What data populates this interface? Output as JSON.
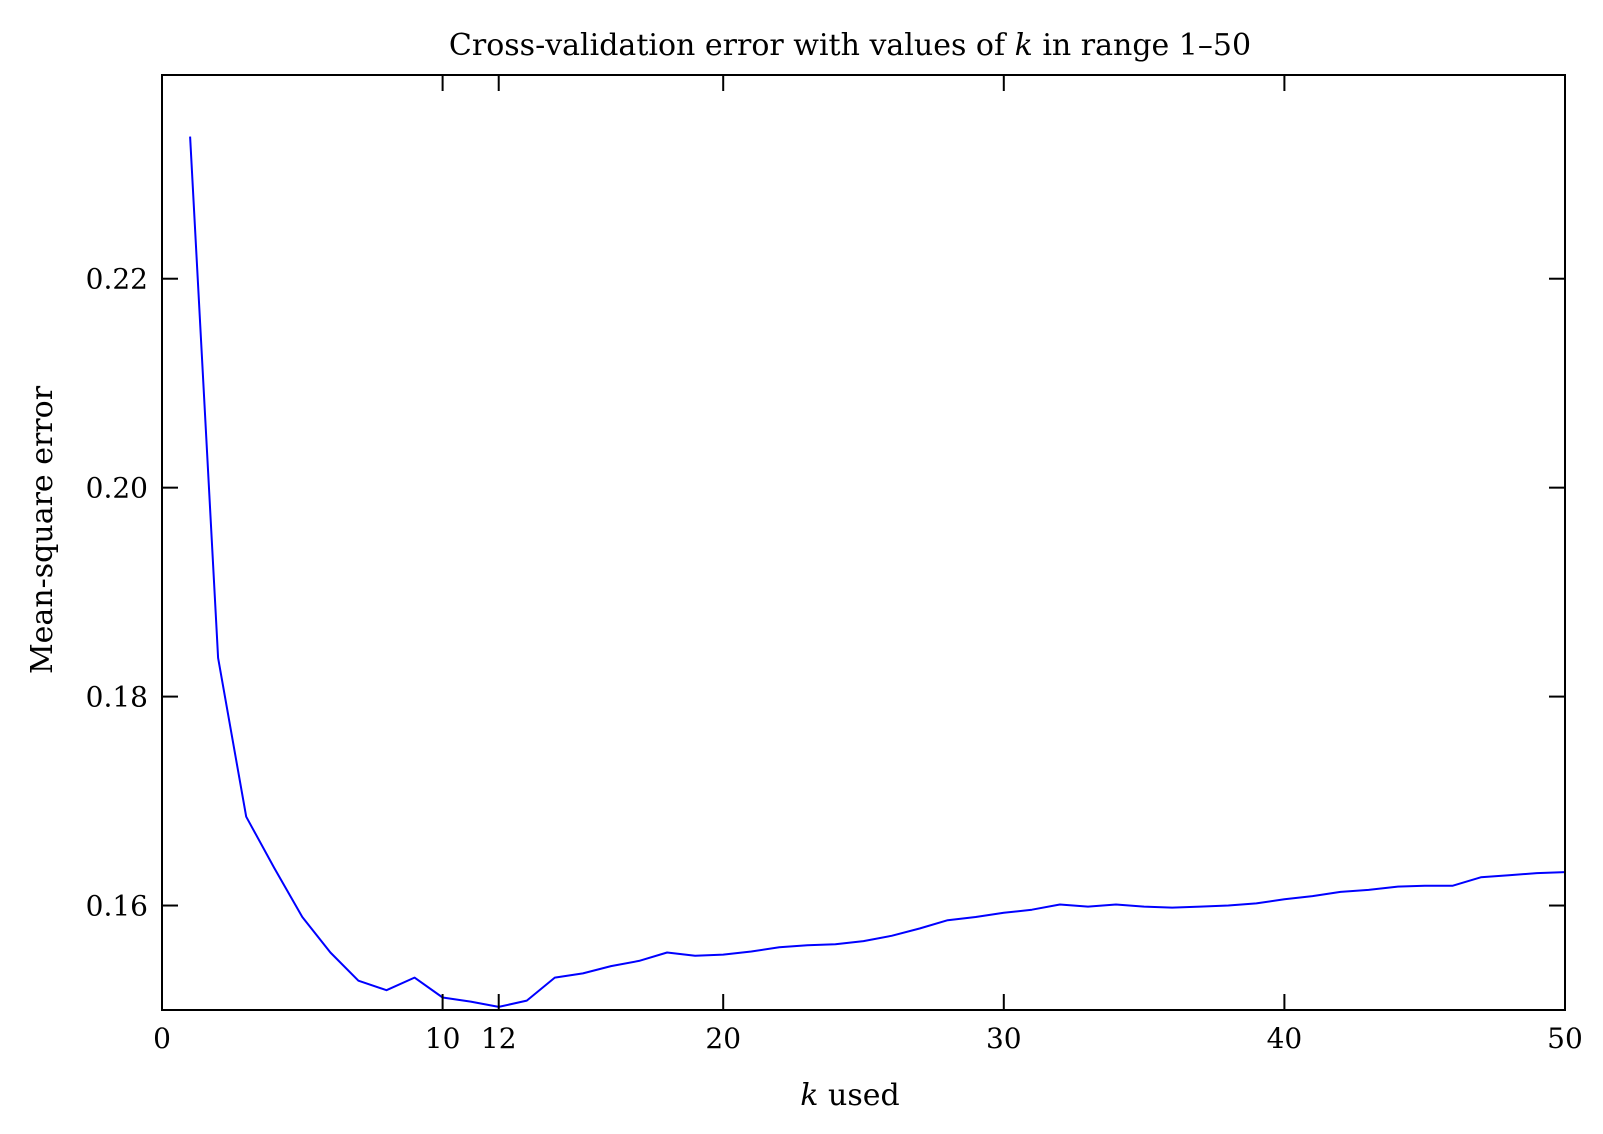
{
  "chart_data": {
    "type": "line",
    "title": {
      "prefix": "Cross-validation error with values of ",
      "var": "k",
      "suffix": " in range 1–50"
    },
    "xlabel": {
      "var": "k",
      "suffix": " used"
    },
    "ylabel": "Mean-square error",
    "xlim": [
      0,
      50
    ],
    "ylim": [
      0.15,
      0.2395
    ],
    "x_ticks": [
      0,
      10,
      12,
      20,
      30,
      40,
      50
    ],
    "x_tick_labels": [
      "0",
      "10",
      "12",
      "20",
      "30",
      "40",
      "50"
    ],
    "y_ticks": [
      0.16,
      0.18,
      0.2,
      0.22
    ],
    "y_tick_labels": [
      "0.16",
      "0.18",
      "0.20",
      "0.22"
    ],
    "grid": false,
    "series": [
      {
        "color": "#0000ff",
        "x": [
          1,
          2,
          3,
          4,
          5,
          6,
          7,
          8,
          9,
          10,
          11,
          12,
          13,
          14,
          15,
          16,
          17,
          18,
          19,
          20,
          21,
          22,
          23,
          24,
          25,
          26,
          27,
          28,
          29,
          30,
          31,
          32,
          33,
          34,
          35,
          36,
          37,
          38,
          39,
          40,
          41,
          42,
          43,
          44,
          45,
          46,
          47,
          48,
          49,
          50
        ],
        "y": [
          0.2336,
          0.1837,
          0.1685,
          0.1636,
          0.1589,
          0.1555,
          0.1528,
          0.1519,
          0.1531,
          0.1512,
          0.1508,
          0.1503,
          0.1509,
          0.1531,
          0.1535,
          0.1542,
          0.1547,
          0.1555,
          0.1552,
          0.1553,
          0.1556,
          0.156,
          0.1562,
          0.1563,
          0.1566,
          0.1571,
          0.1578,
          0.1586,
          0.1589,
          0.1593,
          0.1596,
          0.1601,
          0.1599,
          0.1601,
          0.1599,
          0.1598,
          0.1599,
          0.16,
          0.1602,
          0.1606,
          0.1609,
          0.1613,
          0.1615,
          0.1618,
          0.1619,
          0.1619,
          0.1627,
          0.1629,
          0.1631,
          0.1632
        ]
      }
    ]
  }
}
